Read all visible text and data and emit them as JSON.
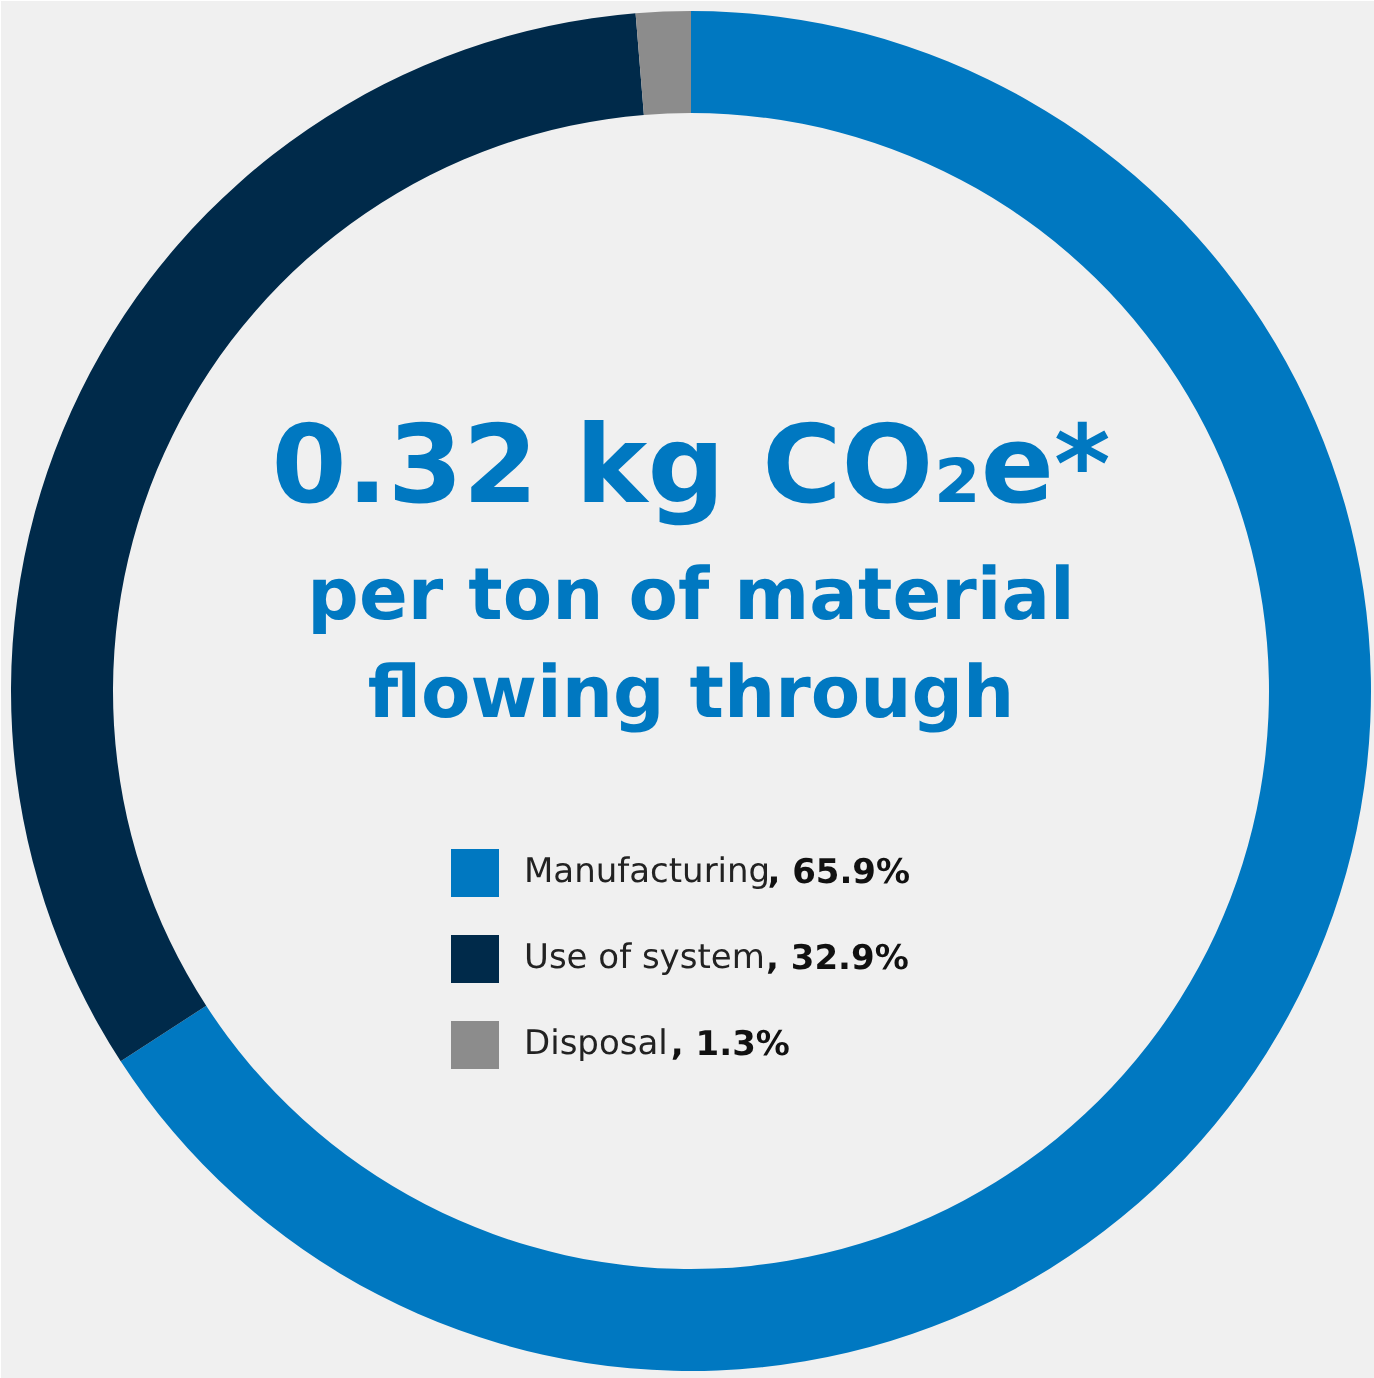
{
  "chart_data": {
    "type": "donut",
    "title": "0.32 kg CO₂e*",
    "subtitle": "per ton of material\nflowing through",
    "categories": [
      "Manufacturing",
      "Use of system",
      "Disposal"
    ],
    "values": [
      65.9,
      32.9,
      1.3
    ],
    "colors": [
      "#0078c1",
      "#002a4a",
      "#8c8c8c"
    ],
    "value_labels": [
      ", 65.9%",
      ", 32.9%",
      ", 1.3%"
    ],
    "legend": "center"
  }
}
